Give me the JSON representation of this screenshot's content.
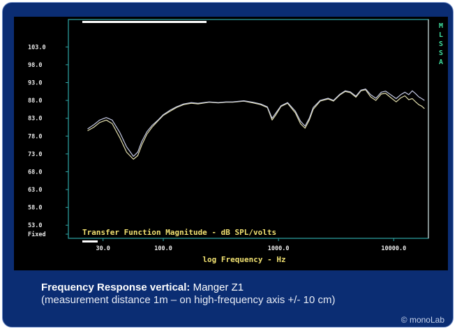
{
  "chart_data": {
    "type": "line",
    "title": "Transfer Function Magnitude - dB SPL/volts",
    "xlabel": "log Frequency - Hz",
    "ylabel": "",
    "x_scale": "log",
    "xlim": [
      15,
      20000
    ],
    "ylim": [
      50.5,
      106
    ],
    "y_ticks": [
      {
        "label": "103.0",
        "value": 103
      },
      {
        "label": "98.0",
        "value": 98
      },
      {
        "label": "93.0",
        "value": 93
      },
      {
        "label": "88.0",
        "value": 88
      },
      {
        "label": "83.0",
        "value": 83
      },
      {
        "label": "78.0",
        "value": 78
      },
      {
        "label": "73.0",
        "value": 73
      },
      {
        "label": "68.0",
        "value": 68
      },
      {
        "label": "63.0",
        "value": 63
      },
      {
        "label": "58.0",
        "value": 58
      },
      {
        "label": "53.0",
        "value": 53
      },
      {
        "label": "Fixed",
        "value": 50.5
      }
    ],
    "x_ticks": [
      {
        "label": "30.0",
        "value": 30
      },
      {
        "label": "100.0",
        "value": 100
      },
      {
        "label": "1000.0",
        "value": 1000
      },
      {
        "label": "10000.0",
        "value": 10000
      }
    ],
    "side_letters": [
      "M",
      "L",
      "S",
      "S",
      "A"
    ],
    "series": [
      {
        "color": "#e4e0ae",
        "x": [
          22,
          25,
          28,
          32,
          36,
          42,
          48,
          55,
          60,
          65,
          72,
          80,
          90,
          100,
          115,
          130,
          150,
          175,
          200,
          250,
          300,
          350,
          400,
          500,
          600,
          700,
          800,
          880,
          950,
          1050,
          1200,
          1400,
          1550,
          1700,
          1850,
          2000,
          2300,
          2700,
          3000,
          3400,
          3800,
          4200,
          4700,
          5200,
          5700,
          6300,
          7000,
          7800,
          8500,
          9500,
          10500,
          11500,
          12500,
          13500,
          14500,
          15500,
          16500,
          17500,
          18500
        ],
        "y": [
          79.5,
          80.5,
          81.8,
          82.5,
          81.5,
          77.5,
          73.5,
          71.5,
          72.5,
          75.5,
          78.5,
          80.5,
          82.3,
          83.8,
          85.0,
          86.0,
          86.8,
          87.2,
          87.0,
          87.5,
          87.3,
          87.5,
          87.5,
          87.8,
          87.3,
          86.8,
          86.0,
          82.5,
          84.0,
          86.3,
          87.2,
          84.5,
          81.5,
          80.2,
          82.5,
          85.5,
          87.8,
          88.4,
          87.8,
          89.5,
          90.5,
          90.2,
          88.9,
          90.7,
          91.0,
          89.0,
          88.0,
          89.8,
          90.0,
          88.7,
          87.6,
          88.7,
          89.3,
          88.2,
          88.5,
          87.6,
          86.8,
          86.4,
          85.7
        ]
      },
      {
        "color": "#c6cbe6",
        "x": [
          22,
          25,
          28,
          32,
          36,
          42,
          48,
          55,
          60,
          65,
          72,
          80,
          90,
          100,
          115,
          130,
          150,
          175,
          200,
          250,
          300,
          350,
          400,
          500,
          600,
          700,
          800,
          880,
          950,
          1050,
          1200,
          1400,
          1550,
          1700,
          1850,
          2000,
          2300,
          2700,
          3000,
          3400,
          3800,
          4200,
          4700,
          5200,
          5700,
          6300,
          7000,
          7800,
          8500,
          9500,
          10500,
          11500,
          12500,
          13500,
          14500,
          15500,
          16500,
          17500,
          18500
        ],
        "y": [
          80.0,
          81.2,
          82.5,
          83.2,
          82.5,
          79.0,
          75.0,
          72.3,
          73.5,
          76.5,
          79.2,
          81.0,
          82.5,
          84.0,
          85.3,
          86.2,
          87.0,
          87.4,
          87.2,
          87.6,
          87.4,
          87.6,
          87.6,
          87.9,
          87.5,
          87.0,
          86.2,
          83.0,
          84.5,
          86.5,
          87.4,
          85.0,
          82.2,
          80.8,
          83.0,
          86.0,
          88.0,
          88.6,
          88.0,
          89.7,
          90.7,
          90.4,
          89.2,
          90.9,
          91.2,
          89.6,
          88.6,
          90.3,
          90.6,
          89.5,
          88.5,
          89.6,
          90.3,
          89.6,
          90.7,
          89.9,
          89.0,
          88.5,
          88.0
        ]
      }
    ]
  },
  "caption": {
    "bold": "Frequency Response vertical:",
    "normal": " Manger Z1",
    "line2": "(measurement distance 1m – on high-frequency axis +/- 10 cm)"
  },
  "watermark": "© monoLab",
  "colors": {
    "frame": "#0b2d73",
    "grid_border": "#2fa8a8",
    "tick_text": "#e8e8e8",
    "axis_title": "#f0e070",
    "fn_title": "#f0e070",
    "side_letters": "#40e0a0",
    "series_cream": "#e4e0ae",
    "series_lavender": "#c6cbe6"
  }
}
